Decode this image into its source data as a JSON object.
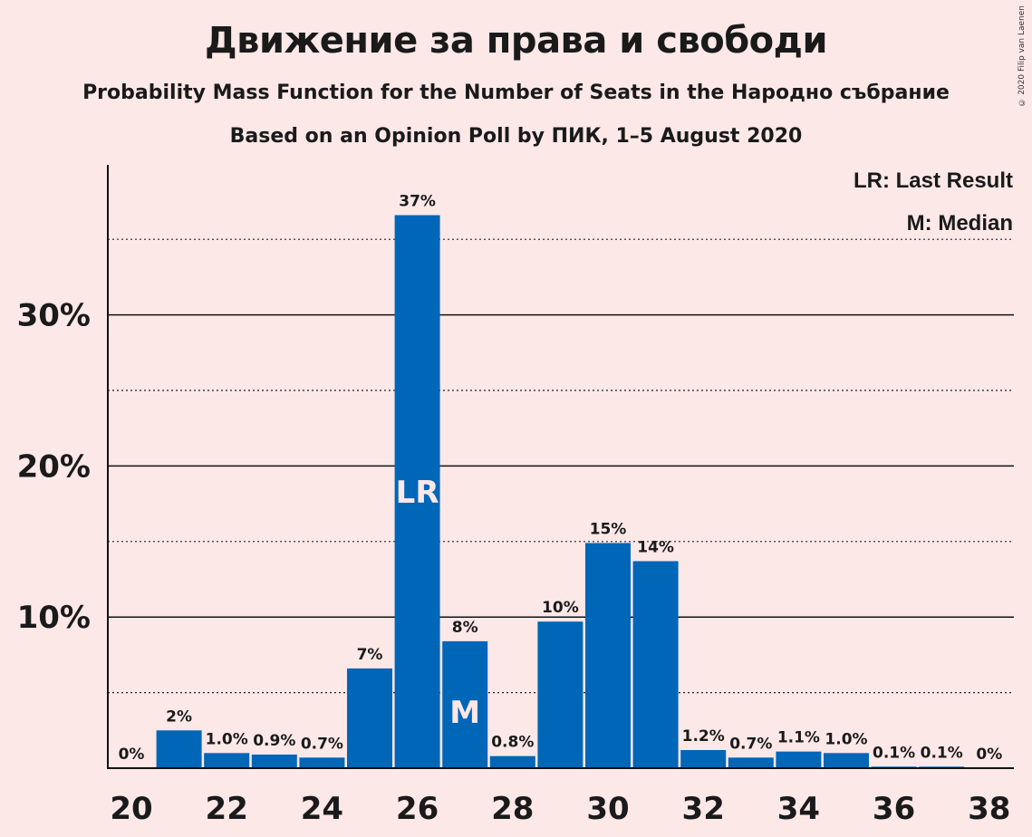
{
  "title": "Движение за права и свободи",
  "subtitle": "Probability Mass Function for the Number of Seats in the Народно събрание",
  "subtitle2": "Based on an Opinion Poll by ПИК, 1–5 August 2020",
  "copyright": "© 2020 Filip van Laenen",
  "legend": {
    "last_result": "LR: Last Result",
    "median": "M: Median"
  },
  "colors": {
    "bar": "#0066B8",
    "background": "#FDE8E8"
  },
  "chart_data": {
    "type": "bar",
    "x": [
      20,
      21,
      22,
      23,
      24,
      25,
      26,
      27,
      28,
      29,
      30,
      31,
      32,
      33,
      34,
      35,
      36,
      37,
      38
    ],
    "values": [
      0,
      2.5,
      1.0,
      0.9,
      0.7,
      6.6,
      36.6,
      8.4,
      0.8,
      9.7,
      14.9,
      13.7,
      1.2,
      0.7,
      1.1,
      1.0,
      0.1,
      0.1,
      0
    ],
    "labels": [
      "0%",
      "2%",
      "1.0%",
      "0.9%",
      "0.7%",
      "7%",
      "37%",
      "8%",
      "0.8%",
      "10%",
      "15%",
      "14%",
      "1.2%",
      "0.7%",
      "1.1%",
      "1.0%",
      "0.1%",
      "0.1%",
      "0%"
    ],
    "x_ticks": [
      "20",
      "22",
      "24",
      "26",
      "28",
      "30",
      "32",
      "34",
      "36",
      "38"
    ],
    "y_ticks": [
      "10%",
      "20%",
      "30%"
    ],
    "y_tick_values": [
      10,
      20,
      30
    ],
    "ylim": [
      0,
      40
    ],
    "grid": "solid at 10%, dotted at 5%",
    "last_result": 26,
    "last_result_label": "LR",
    "median": 27,
    "median_label": "M"
  }
}
